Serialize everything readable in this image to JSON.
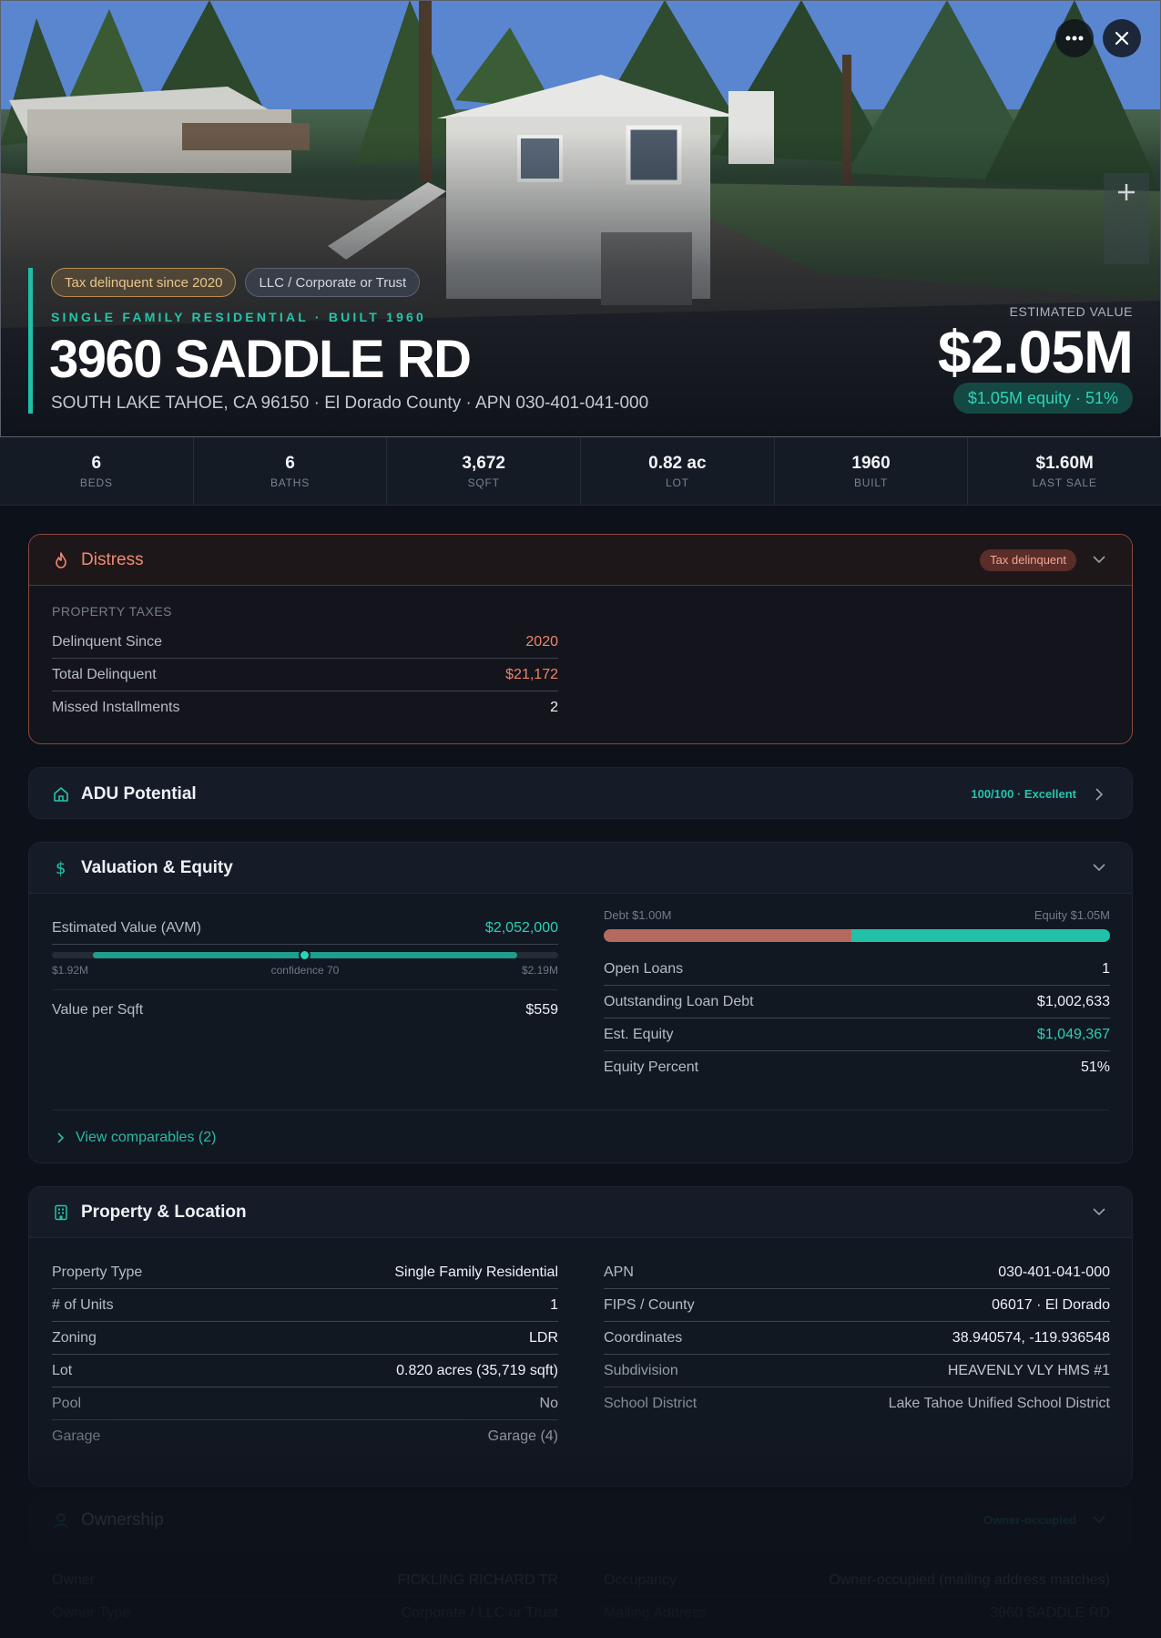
{
  "hero": {
    "badges": [
      "Tax delinquent since 2020",
      "LLC / Corporate or Trust"
    ],
    "property_type_line": "SINGLE FAMILY RESIDENTIAL · BUILT 1960",
    "address": "3960 SADDLE RD",
    "subaddress": "SOUTH LAKE TAHOE, CA 96150 · El Dorado County · APN 030-401-041-000",
    "estimated_value_label": "ESTIMATED VALUE",
    "estimated_value": "$2.05M",
    "equity_pill": "$1.05M equity · 51%",
    "icons": [
      "more-icon",
      "close-icon",
      "plus-icon"
    ]
  },
  "stats": [
    {
      "value": "6",
      "label": "BEDS"
    },
    {
      "value": "6",
      "label": "BATHS"
    },
    {
      "value": "3,672",
      "label": "SQFT"
    },
    {
      "value": "0.82 ac",
      "label": "LOT"
    },
    {
      "value": "1960",
      "label": "BUILT"
    },
    {
      "value": "$1.60M",
      "label": "LAST SALE"
    }
  ],
  "distress": {
    "title": "Distress",
    "tag": "Tax delinquent",
    "section": "PROPERTY TAXES",
    "rows": [
      {
        "k": "Delinquent Since",
        "v": "2020"
      },
      {
        "k": "Total Delinquent",
        "v": "$21,172"
      },
      {
        "k": "Missed Installments",
        "v": "2"
      }
    ]
  },
  "adu": {
    "title": "ADU Potential",
    "score": "100/100 · Excellent"
  },
  "valuation": {
    "title": "Valuation & Equity",
    "avm_label": "Estimated Value (AVM)",
    "avm_value": "$2,052,000",
    "range_low": "$1.92M",
    "confidence": "confidence 70",
    "range_high": "$2.19M",
    "value_per_sqft_label": "Value per Sqft",
    "value_per_sqft": "$559",
    "debt_label": "Debt $1.00M",
    "equity_label": "Equity $1.05M",
    "debt_fraction": 0.49,
    "rows": [
      {
        "k": "Open Loans",
        "v": "1"
      },
      {
        "k": "Outstanding Loan Debt",
        "v": "$1,002,633"
      },
      {
        "k": "Est. Equity",
        "v": "$1,049,367"
      },
      {
        "k": "Equity Percent",
        "v": "51%"
      }
    ],
    "comparables_link": "View comparables (2)"
  },
  "property": {
    "title": "Property & Location",
    "left": [
      {
        "k": "Property Type",
        "v": "Single Family Residential"
      },
      {
        "k": "# of Units",
        "v": "1"
      },
      {
        "k": "Zoning",
        "v": "LDR"
      },
      {
        "k": "Lot",
        "v": "0.820 acres (35,719 sqft)"
      },
      {
        "k": "Pool",
        "v": "No"
      },
      {
        "k": "Garage",
        "v": "Garage (4)"
      }
    ],
    "right": [
      {
        "k": "APN",
        "v": "030-401-041-000"
      },
      {
        "k": "FIPS / County",
        "v": "06017 · El Dorado"
      },
      {
        "k": "Coordinates",
        "v": "38.940574, -119.936548"
      },
      {
        "k": "Subdivision",
        "v": "HEAVENLY VLY HMS #1"
      },
      {
        "k": "School District",
        "v": "Lake Tahoe Unified School District"
      }
    ]
  },
  "ownership": {
    "title": "Ownership",
    "tag": "Owner-occupied",
    "left": [
      {
        "k": "Owner",
        "v": "FICKLING RICHARD TR"
      },
      {
        "k": "Owner Type",
        "v": "Corporate / LLC or Trust"
      }
    ],
    "right": [
      {
        "k": "Occupancy",
        "v": "Owner-occupied (mailing address matches)"
      },
      {
        "k": "Mailing Address",
        "v": "3960 SADDLE RD"
      }
    ]
  },
  "colors": {
    "accent": "#1fbfa8",
    "distress": "#f08a72",
    "background": "#0d1119"
  }
}
